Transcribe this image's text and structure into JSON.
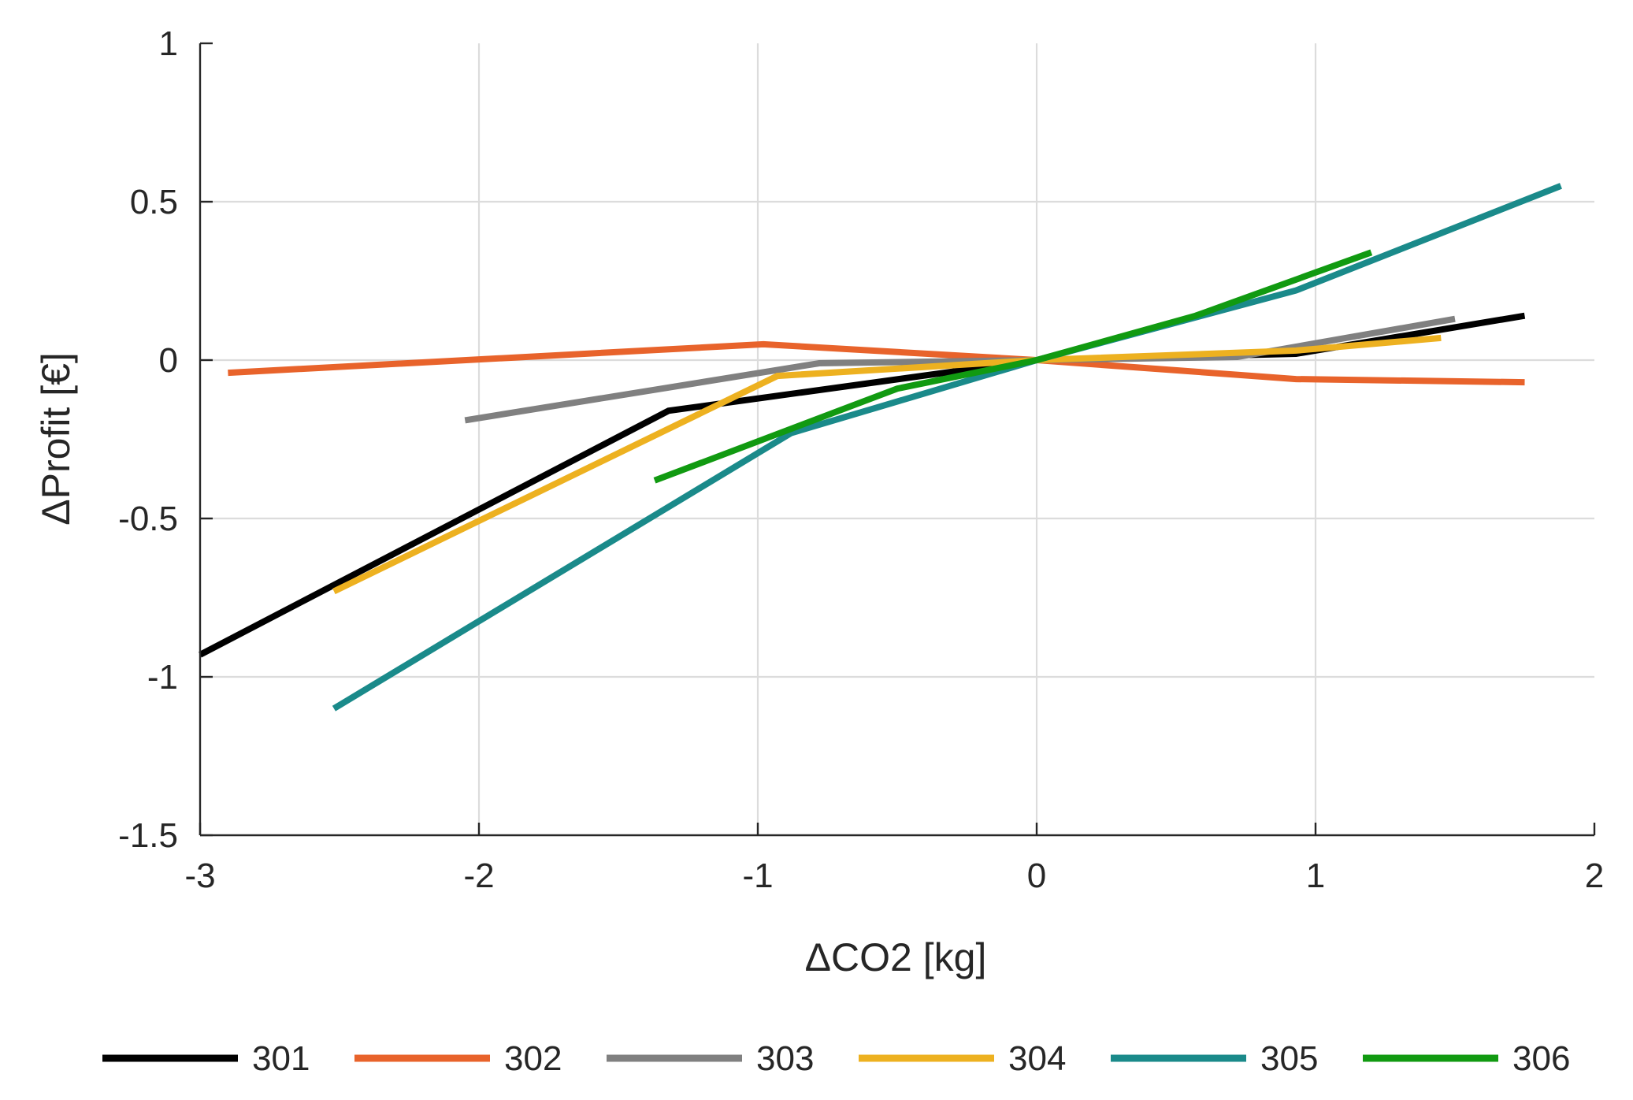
{
  "chart_data": {
    "type": "line",
    "title": "",
    "xlabel": "ΔCO2 [kg]",
    "ylabel": "ΔProfit [€]",
    "xlim": [
      -3,
      2
    ],
    "ylim": [
      -1.5,
      1
    ],
    "xticks": [
      -3,
      -2,
      -1,
      0,
      1,
      2
    ],
    "yticks": [
      -1.5,
      -1,
      -0.5,
      0,
      0.5,
      1
    ],
    "xtick_labels": [
      "-3",
      "-2",
      "-1",
      "0",
      "1",
      "2"
    ],
    "ytick_labels": [
      "-1.5",
      "-1",
      "-0.5",
      "0",
      "0.5",
      "1"
    ],
    "grid": true,
    "legend_position": "bottom",
    "series": [
      {
        "name": "301",
        "color": "#000000",
        "points": [
          [
            -3.0,
            -0.93
          ],
          [
            -1.32,
            -0.16
          ],
          [
            0.0,
            0.0
          ],
          [
            0.93,
            0.02
          ],
          [
            1.75,
            0.14
          ]
        ]
      },
      {
        "name": "302",
        "color": "#E8632B",
        "points": [
          [
            -2.9,
            -0.04
          ],
          [
            -0.98,
            0.05
          ],
          [
            0.0,
            0.0
          ],
          [
            0.93,
            -0.06
          ],
          [
            1.75,
            -0.07
          ]
        ]
      },
      {
        "name": "303",
        "color": "#808080",
        "points": [
          [
            -2.05,
            -0.19
          ],
          [
            -0.78,
            -0.01
          ],
          [
            0.0,
            0.0
          ],
          [
            0.72,
            0.01
          ],
          [
            1.5,
            0.13
          ]
        ]
      },
      {
        "name": "304",
        "color": "#EDB120",
        "points": [
          [
            -2.52,
            -0.73
          ],
          [
            -0.93,
            -0.05
          ],
          [
            0.0,
            0.0
          ],
          [
            0.93,
            0.03
          ],
          [
            1.45,
            0.07
          ]
        ]
      },
      {
        "name": "305",
        "color": "#1A8A8A",
        "points": [
          [
            -2.52,
            -1.1
          ],
          [
            -0.88,
            -0.23
          ],
          [
            0.0,
            0.0
          ],
          [
            0.93,
            0.22
          ],
          [
            1.88,
            0.55
          ]
        ]
      },
      {
        "name": "306",
        "color": "#119A11",
        "points": [
          [
            -1.37,
            -0.38
          ],
          [
            -0.5,
            -0.09
          ],
          [
            0.0,
            0.0
          ],
          [
            0.57,
            0.14
          ],
          [
            1.2,
            0.34
          ]
        ]
      }
    ]
  }
}
